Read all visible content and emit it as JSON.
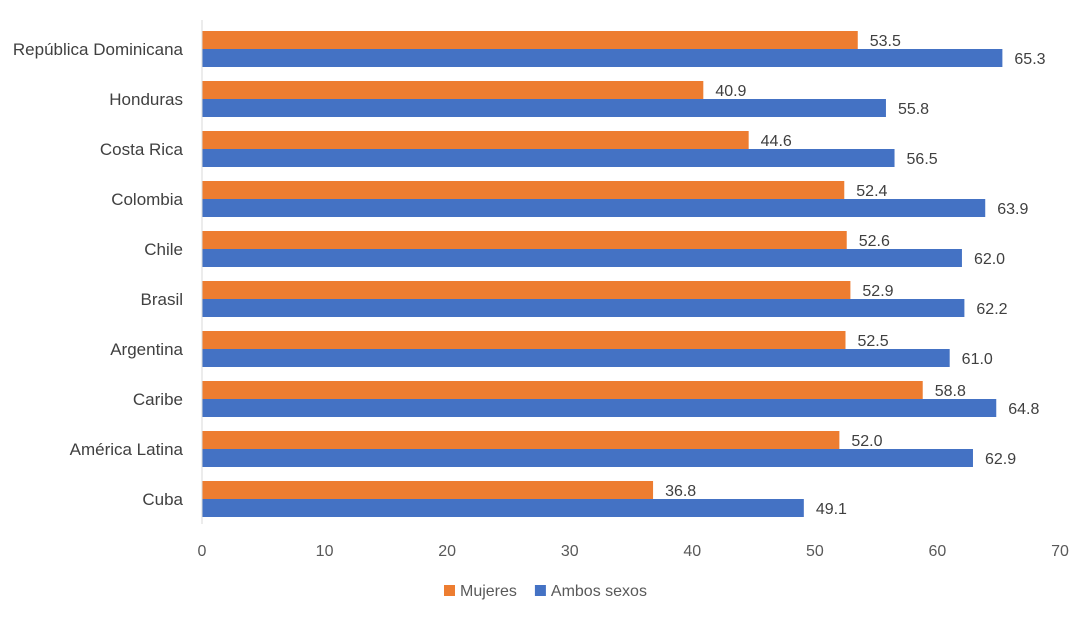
{
  "chart_data": {
    "type": "bar",
    "orientation": "horizontal",
    "title": "",
    "xlabel": "",
    "ylabel": "",
    "categories": [
      "República Dominicana",
      "Honduras",
      "Costa Rica",
      "Colombia",
      "Chile",
      "Brasil",
      "Argentina",
      "Caribe",
      "América Latina",
      "Cuba"
    ],
    "series": [
      {
        "name": "Mujeres",
        "color": "#ED7D31",
        "values": [
          53.5,
          40.9,
          44.6,
          52.4,
          52.6,
          52.9,
          52.5,
          58.8,
          52.0,
          36.8
        ]
      },
      {
        "name": "Ambos sexos",
        "color": "#4472C4",
        "values": [
          65.3,
          55.8,
          56.5,
          63.9,
          62.0,
          62.2,
          61.0,
          64.8,
          62.9,
          49.1
        ]
      }
    ],
    "xlim": [
      0,
      70
    ],
    "xticks": [
      "0",
      "10",
      "20",
      "30",
      "40",
      "50",
      "60",
      "70"
    ],
    "data_labels": true,
    "grid": false,
    "legend_position": "bottom"
  }
}
